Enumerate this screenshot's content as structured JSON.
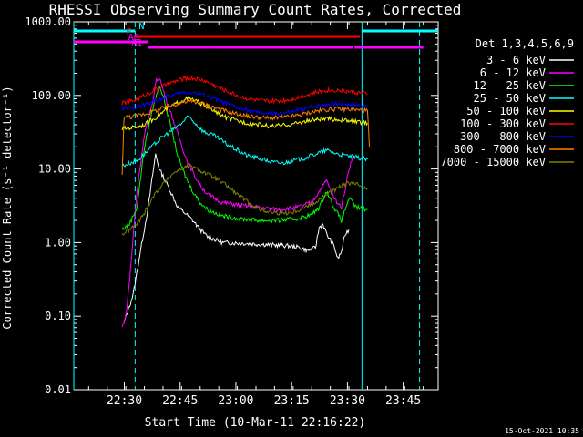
{
  "chart_data": {
    "type": "line",
    "title": "RHESSI Observing Summary Count Rates, Corrected",
    "xlabel": "Start Time (10-Mar-11 22:16:22)",
    "ylabel": "Corrected Count Rate (s⁻¹ detector⁻¹)",
    "yscale": "log",
    "ylim": [
      0.01,
      1000
    ],
    "xlim_minutes_after_22_16_22": [
      0,
      98
    ],
    "yticks": [
      "0.01",
      "0.10",
      "1.00",
      "10.00",
      "100.00",
      "1000.00"
    ],
    "xticks": [
      {
        "label": "22:30",
        "t": 13.6
      },
      {
        "label": "22:45",
        "t": 28.6
      },
      {
        "label": "23:00",
        "t": 43.6
      },
      {
        "label": "23:15",
        "t": 58.6
      },
      {
        "label": "23:30",
        "t": 73.6
      },
      {
        "label": "23:45",
        "t": 88.6
      }
    ],
    "legend_header": "Det 1,3,4,5,6,9",
    "legend_position": "right",
    "series": [
      {
        "name": "3 - 6 keV",
        "color": "#ffffff",
        "points": [
          [
            13.5,
            0.08
          ],
          [
            16,
            0.2
          ],
          [
            18,
            0.8
          ],
          [
            20,
            3
          ],
          [
            22,
            16
          ],
          [
            23,
            10
          ],
          [
            24,
            8
          ],
          [
            26,
            5
          ],
          [
            28,
            3
          ],
          [
            30,
            2.5
          ],
          [
            32,
            2
          ],
          [
            34,
            1.5
          ],
          [
            36,
            1.2
          ],
          [
            40,
            1.0
          ],
          [
            45,
            0.98
          ],
          [
            50,
            0.95
          ],
          [
            55,
            0.92
          ],
          [
            58,
            0.9
          ],
          [
            61,
            0.85
          ],
          [
            63,
            0.78
          ],
          [
            65,
            0.85
          ],
          [
            66,
            1.6
          ],
          [
            67,
            1.8
          ],
          [
            68,
            1.3
          ],
          [
            70,
            0.9
          ],
          [
            71,
            0.6
          ],
          [
            72,
            0.75
          ],
          [
            73,
            1.3
          ],
          [
            74,
            1.5
          ]
        ]
      },
      {
        "name": "6 - 12 keV",
        "color": "#ff00ff",
        "points": [
          [
            13,
            0.07
          ],
          [
            14,
            0.1
          ],
          [
            15,
            0.3
          ],
          [
            17,
            5
          ],
          [
            19,
            30
          ],
          [
            21,
            70
          ],
          [
            22,
            150
          ],
          [
            23,
            180
          ],
          [
            24,
            120
          ],
          [
            26,
            60
          ],
          [
            28,
            30
          ],
          [
            30,
            15
          ],
          [
            32,
            9
          ],
          [
            34,
            6
          ],
          [
            36,
            4.5
          ],
          [
            40,
            3.5
          ],
          [
            45,
            3.2
          ],
          [
            50,
            3.0
          ],
          [
            55,
            2.8
          ],
          [
            60,
            3.0
          ],
          [
            64,
            3.5
          ],
          [
            66,
            5
          ],
          [
            68,
            7
          ],
          [
            70,
            4
          ],
          [
            72,
            3
          ],
          [
            74,
            10
          ],
          [
            75,
            15
          ]
        ]
      },
      {
        "name": "12 - 25 keV",
        "color": "#00ff00",
        "points": [
          [
            13,
            1.5
          ],
          [
            15,
            1.8
          ],
          [
            17,
            3
          ],
          [
            19,
            20
          ],
          [
            21,
            60
          ],
          [
            23,
            140
          ],
          [
            24,
            100
          ],
          [
            26,
            40
          ],
          [
            28,
            15
          ],
          [
            30,
            8
          ],
          [
            32,
            5
          ],
          [
            34,
            3.5
          ],
          [
            36,
            2.8
          ],
          [
            40,
            2.3
          ],
          [
            45,
            2.1
          ],
          [
            50,
            2.0
          ],
          [
            55,
            2.0
          ],
          [
            60,
            2.1
          ],
          [
            64,
            2.4
          ],
          [
            66,
            3
          ],
          [
            68,
            5
          ],
          [
            70,
            3
          ],
          [
            72,
            2
          ],
          [
            74,
            4
          ],
          [
            76,
            3
          ],
          [
            79,
            2.8
          ]
        ]
      },
      {
        "name": "25 - 50 keV",
        "color": "#00ffff",
        "points": [
          [
            13,
            11
          ],
          [
            15,
            12
          ],
          [
            17,
            13
          ],
          [
            19,
            16
          ],
          [
            21,
            20
          ],
          [
            23,
            25
          ],
          [
            25,
            30
          ],
          [
            27,
            35
          ],
          [
            29,
            42
          ],
          [
            31,
            52
          ],
          [
            33,
            40
          ],
          [
            35,
            32
          ],
          [
            38,
            28
          ],
          [
            41,
            22
          ],
          [
            44,
            18
          ],
          [
            47,
            15
          ],
          [
            50,
            14
          ],
          [
            53,
            12.5
          ],
          [
            56,
            12
          ],
          [
            59,
            13
          ],
          [
            62,
            14
          ],
          [
            65,
            16
          ],
          [
            68,
            18
          ],
          [
            71,
            16
          ],
          [
            74,
            15
          ],
          [
            77,
            14
          ],
          [
            79,
            13.5
          ]
        ]
      },
      {
        "name": "50 - 100 keV",
        "color": "#ffff00",
        "points": [
          [
            13,
            35
          ],
          [
            16,
            37
          ],
          [
            19,
            40
          ],
          [
            22,
            50
          ],
          [
            25,
            65
          ],
          [
            28,
            80
          ],
          [
            30,
            90
          ],
          [
            32,
            88
          ],
          [
            35,
            75
          ],
          [
            38,
            60
          ],
          [
            41,
            50
          ],
          [
            44,
            45
          ],
          [
            47,
            42
          ],
          [
            50,
            40
          ],
          [
            53,
            38
          ],
          [
            56,
            39
          ],
          [
            59,
            41
          ],
          [
            62,
            44
          ],
          [
            65,
            47
          ],
          [
            68,
            48
          ],
          [
            71,
            47
          ],
          [
            74,
            45
          ],
          [
            77,
            43
          ],
          [
            79,
            42
          ]
        ]
      },
      {
        "name": "100 - 300 keV",
        "color": "#ff0000",
        "points": [
          [
            13,
            78
          ],
          [
            16,
            85
          ],
          [
            19,
            100
          ],
          [
            22,
            120
          ],
          [
            25,
            140
          ],
          [
            28,
            160
          ],
          [
            30,
            170
          ],
          [
            32,
            172
          ],
          [
            35,
            160
          ],
          [
            38,
            135
          ],
          [
            41,
            115
          ],
          [
            44,
            100
          ],
          [
            47,
            90
          ],
          [
            50,
            85
          ],
          [
            53,
            83
          ],
          [
            56,
            85
          ],
          [
            59,
            90
          ],
          [
            62,
            100
          ],
          [
            65,
            110
          ],
          [
            68,
            118
          ],
          [
            71,
            118
          ],
          [
            74,
            113
          ],
          [
            77,
            108
          ],
          [
            79,
            105
          ]
        ]
      },
      {
        "name": "300 - 800 keV",
        "color": "#0000ff",
        "points": [
          [
            13,
            65
          ],
          [
            16,
            68
          ],
          [
            19,
            75
          ],
          [
            22,
            85
          ],
          [
            25,
            95
          ],
          [
            28,
            105
          ],
          [
            30,
            110
          ],
          [
            32,
            110
          ],
          [
            35,
            102
          ],
          [
            38,
            90
          ],
          [
            41,
            78
          ],
          [
            44,
            68
          ],
          [
            47,
            62
          ],
          [
            50,
            58
          ],
          [
            53,
            56
          ],
          [
            56,
            57
          ],
          [
            59,
            60
          ],
          [
            62,
            66
          ],
          [
            65,
            72
          ],
          [
            68,
            76
          ],
          [
            71,
            78
          ],
          [
            74,
            76
          ],
          [
            77,
            73
          ],
          [
            79,
            71
          ]
        ]
      },
      {
        "name": "800 - 7000 keV",
        "color": "#ff8000",
        "points": [
          [
            13,
            8
          ],
          [
            13.5,
            50
          ],
          [
            16,
            52
          ],
          [
            19,
            56
          ],
          [
            22,
            62
          ],
          [
            25,
            70
          ],
          [
            28,
            78
          ],
          [
            30,
            82
          ],
          [
            32,
            82
          ],
          [
            35,
            76
          ],
          [
            38,
            68
          ],
          [
            41,
            61
          ],
          [
            44,
            56
          ],
          [
            47,
            52
          ],
          [
            50,
            50
          ],
          [
            53,
            49
          ],
          [
            56,
            50
          ],
          [
            59,
            52
          ],
          [
            62,
            56
          ],
          [
            65,
            61
          ],
          [
            68,
            64
          ],
          [
            71,
            66
          ],
          [
            74,
            65
          ],
          [
            77,
            63
          ],
          [
            79,
            62
          ],
          [
            79.5,
            20
          ]
        ]
      },
      {
        "name": "7000 - 15000 keV",
        "color": "#808000",
        "points": [
          [
            13,
            1.3
          ],
          [
            15,
            1.5
          ],
          [
            17,
            1.8
          ],
          [
            19,
            2.5
          ],
          [
            21,
            4
          ],
          [
            23,
            5.5
          ],
          [
            25,
            7
          ],
          [
            27,
            9
          ],
          [
            29,
            10
          ],
          [
            31,
            11
          ],
          [
            33,
            10
          ],
          [
            35,
            9
          ],
          [
            38,
            7.5
          ],
          [
            41,
            6
          ],
          [
            44,
            4.5
          ],
          [
            47,
            3.5
          ],
          [
            50,
            2.8
          ],
          [
            53,
            2.6
          ],
          [
            56,
            2.5
          ],
          [
            59,
            2.6
          ],
          [
            62,
            3.0
          ],
          [
            65,
            3.5
          ],
          [
            68,
            4.5
          ],
          [
            71,
            5.5
          ],
          [
            74,
            6.5
          ],
          [
            77,
            6
          ],
          [
            79,
            5.5
          ]
        ]
      }
    ],
    "vertical_lines": [
      {
        "t": 0,
        "style": "solid",
        "color": "#00ffff"
      },
      {
        "t": 16.5,
        "style": "dashed",
        "color": "#00ffff"
      },
      {
        "t": 77.5,
        "style": "solid",
        "color": "#00ffff"
      },
      {
        "t": 93,
        "style": "dashed",
        "color": "#00ffff"
      }
    ],
    "flag_bars": [
      {
        "label": "N",
        "color": "#00ffff",
        "y": 1.0,
        "segments": [
          [
            0,
            16.5
          ],
          [
            77.5,
            98
          ]
        ]
      },
      {
        "label": "F",
        "color": "#ff0000",
        "y": 2.0,
        "segments": [
          [
            16.5,
            77
          ]
        ]
      },
      {
        "label": "A0",
        "color": "#ff00ff",
        "y": 3.0,
        "segments": [
          [
            0,
            20
          ]
        ]
      },
      {
        "label": "A1",
        "color": "#ff00ff",
        "y": 4.0,
        "segments": [
          [
            20,
            38
          ],
          [
            38,
            75
          ],
          [
            75.5,
            94
          ]
        ]
      }
    ],
    "timestamp": "15-Oct-2021 10:35"
  }
}
